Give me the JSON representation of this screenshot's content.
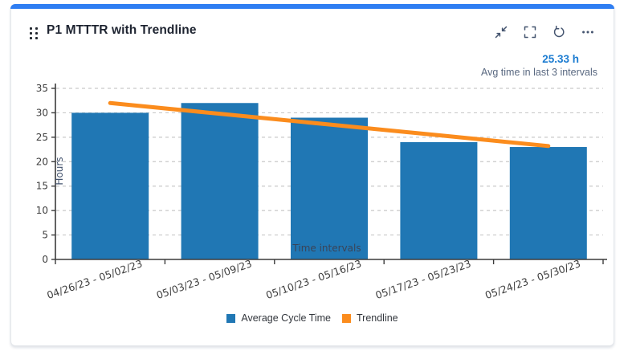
{
  "widget": {
    "title": "P1 MTTTR with Trendline",
    "actions": {
      "collapse": "collapse",
      "fullscreen": "fullscreen",
      "refresh": "refresh",
      "more": "more options"
    },
    "kpi": {
      "value": "25.33 h",
      "caption": "Avg time in last 3 intervals"
    }
  },
  "chart_data": {
    "type": "bar",
    "title": "P1 MTTTR with Trendline",
    "categories": [
      "04/26/23 - 05/02/23",
      "05/03/23 - 05/09/23",
      "05/10/23 - 05/16/23",
      "05/17/23 - 05/23/23",
      "05/24/23 - 05/30/23"
    ],
    "series": [
      {
        "name": "Average Cycle Time",
        "type": "bar",
        "color": "#2077b4",
        "values": [
          30,
          32,
          29,
          24,
          23
        ]
      },
      {
        "name": "Trendline",
        "type": "line",
        "color": "#fb8c1d",
        "values": [
          32,
          29.8,
          27.6,
          25.4,
          23.2
        ]
      }
    ],
    "xlabel": "Time intervals",
    "ylabel": "Hours",
    "ylim": [
      0,
      35
    ],
    "yticks": [
      0,
      5,
      10,
      15,
      20,
      25,
      30,
      35
    ],
    "grid": "horizontal-dashed",
    "legend_position": "bottom",
    "x_label_rotation_deg": -19
  },
  "colors": {
    "accent_bar": "#2f7ef2",
    "kpi_value": "#1c7cd1",
    "axis_line": "#3c3c3c",
    "grid_line": "#c9c9c9",
    "tick_text": "#3d3d3d",
    "axis_title_text": "#44546f"
  }
}
